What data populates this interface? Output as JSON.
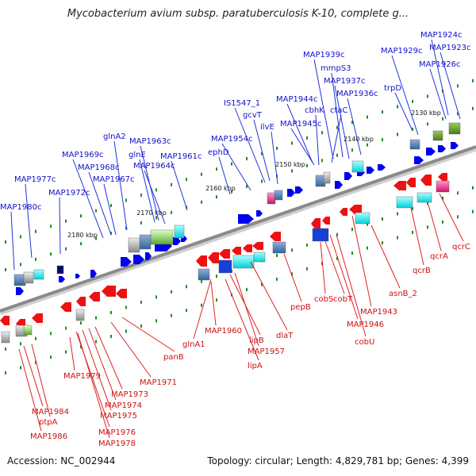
{
  "title": "Mycobacterium avium subsp. paratuberculosis K-10, complete g...",
  "footer": {
    "accession": "Accession: NC_002944",
    "summary": "Topology: circular; Length: 4,829,781 bp; Genes: 4,399"
  },
  "scale_marks": [
    "2130 kbp",
    "2140 kbp",
    "2150 kbp",
    "2160 kbp",
    "2170 kbp",
    "2180 kbp"
  ],
  "genes_forward": [
    "MAP1924c",
    "MAP1923c",
    "MAP1929c",
    "MAP1926c",
    "MAP1939c",
    "mmpS3",
    "MAP1937c",
    "MAP1936c",
    "trpD",
    "IS1547_1",
    "MAP1944c",
    "cbhK",
    "ctaC",
    "gcvT",
    "MAP1945c",
    "ilvE",
    "MAP1954c",
    "ephD",
    "glnA2",
    "MAP1963c",
    "MAP1969c",
    "glnE",
    "MAP1961c",
    "MAP1968c",
    "MAP1964c",
    "MAP1967c",
    "MAP1977c",
    "MAP1972c",
    "MAP1980c"
  ],
  "genes_reverse": [
    "qcrC",
    "qcrA",
    "qcrB",
    "asnB_2",
    "MAP1943",
    "cobS",
    "cobT",
    "MAP1946",
    "cobU",
    "pepB",
    "dlaT",
    "MAP1960",
    "lipB",
    "MAP1957",
    "lipA",
    "glnA1",
    "panB",
    "MAP1971",
    "MAP1979",
    "MAP1973",
    "MAP1974",
    "MAP1975",
    "MAP1984",
    "ptpA",
    "MAP1976",
    "MAP1986",
    "MAP1978"
  ],
  "colors": {
    "forward_label": "#1111cc",
    "reverse_label": "#cc1111",
    "forward_gene": "#0000ee",
    "reverse_gene": "#ee1111",
    "backbone": "#8a8a8a",
    "tick": "#228b22"
  }
}
